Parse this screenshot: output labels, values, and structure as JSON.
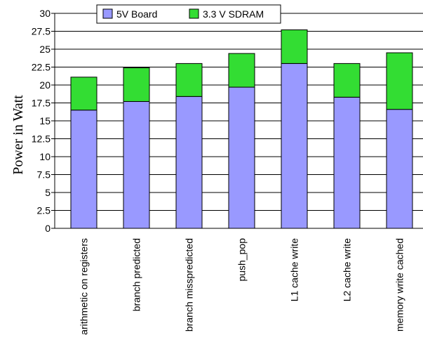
{
  "chart_data": {
    "type": "bar",
    "stacked": true,
    "categories": [
      "arithmetic on registers",
      "branch predicted",
      "branch misspredicted",
      "push_pop",
      "L1 cache write",
      "L2 cache write",
      "memory write cached"
    ],
    "series": [
      {
        "name": "5V Board",
        "color": "#9999ff",
        "values": [
          16.5,
          17.7,
          18.4,
          19.7,
          23.0,
          18.3,
          16.6
        ]
      },
      {
        "name": "3.3 V SDRAM",
        "color": "#33dd33",
        "values": [
          4.6,
          4.7,
          4.6,
          4.7,
          4.7,
          4.7,
          7.9
        ]
      }
    ],
    "ylabel": "Power in Watt",
    "ylim": [
      0,
      30
    ],
    "yticks": [
      "0",
      "2.5",
      "5",
      "7.5",
      "10",
      "12.5",
      "15",
      "17.5",
      "20",
      "22.5",
      "25",
      "27.5",
      "30"
    ],
    "grid": true,
    "legend_position": "top"
  }
}
